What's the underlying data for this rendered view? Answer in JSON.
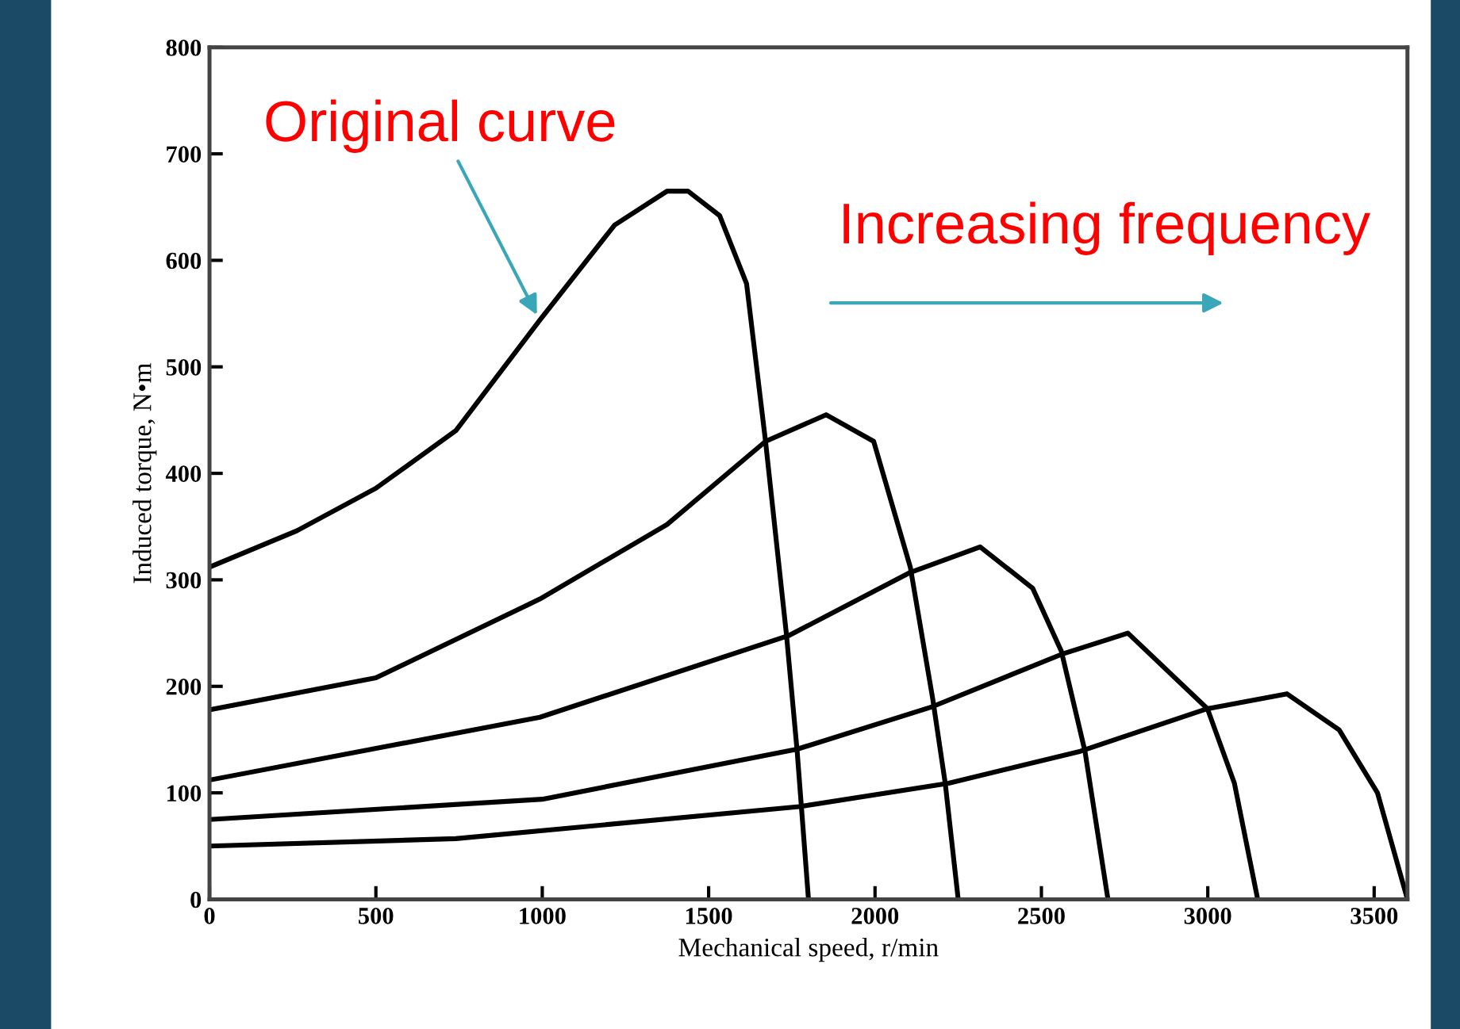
{
  "chart_data": {
    "type": "line",
    "xlabel": "Mechanical speed, r/min",
    "ylabel": "Induced torque, N•m",
    "xlim": [
      0,
      3600
    ],
    "ylim": [
      0,
      800
    ],
    "xticks": [
      0,
      500,
      1000,
      1500,
      2000,
      2500,
      3000,
      3500
    ],
    "yticks": [
      0,
      100,
      200,
      300,
      400,
      500,
      600,
      700,
      800
    ],
    "grid": false,
    "marker": "none",
    "line_style": "solid",
    "annotations": [
      {
        "text": "Original curve",
        "x": 990,
        "y": 545
      },
      "Increasing frequency"
    ],
    "series": [
      {
        "color": "#000000",
        "x": [
          0,
          262,
          500,
          740,
          993,
          1217,
          1375,
          1438,
          1533,
          1614,
          1671,
          1734,
          1766,
          1800
        ],
        "values": [
          312,
          346,
          386,
          440,
          544,
          633,
          665,
          665,
          642,
          578,
          430,
          248,
          139,
          0
        ]
      },
      {
        "color": "#000000",
        "x": [
          0,
          500,
          993,
          1375,
          1671,
          1853,
          1996,
          2106,
          2173,
          2211,
          2250
        ],
        "values": [
          178,
          208,
          282,
          352,
          430,
          455,
          430,
          312,
          189,
          109,
          0
        ]
      },
      {
        "color": "#000000",
        "x": [
          0,
          993,
          1743,
          2106,
          2316,
          2474,
          2560,
          2631,
          2700
        ],
        "values": [
          112,
          171,
          248,
          307,
          331,
          292,
          233,
          139,
          0
        ]
      },
      {
        "color": "#000000",
        "x": [
          0,
          1000,
          1766,
          2173,
          2560,
          2760,
          2999,
          3080,
          3150
        ],
        "values": [
          75,
          94,
          141,
          181,
          230,
          250,
          179,
          109,
          0
        ]
      },
      {
        "color": "#000000",
        "x": [
          0,
          740,
          1772,
          2221,
          2617,
          2999,
          3238,
          3395,
          3510,
          3600
        ],
        "values": [
          50,
          57,
          87,
          109,
          139,
          179,
          193,
          159,
          100,
          0
        ]
      }
    ]
  }
}
